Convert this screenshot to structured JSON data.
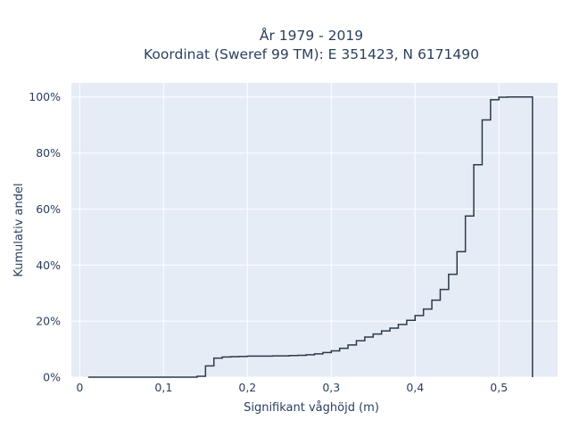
{
  "chart_data": {
    "type": "line",
    "subtype": "ecdf-step",
    "title_lines": [
      "År 1979 - 2019",
      "Koordinat (Sweref 99 TM): E 351423, N 6171490"
    ],
    "xlabel": "Signifikant våghöjd (m)",
    "ylabel": "Kumulativ andel",
    "xlim": [
      -0.01,
      0.57
    ],
    "ylim": [
      0,
      1.05
    ],
    "x_ticks": [
      0,
      0.1,
      0.2,
      0.3,
      0.4,
      0.5
    ],
    "x_tick_labels": [
      "0",
      "0,1",
      "0,2",
      "0,3",
      "0,4",
      "0,5"
    ],
    "y_ticks": [
      0,
      0.2,
      0.4,
      0.6,
      0.8,
      1.0
    ],
    "y_tick_labels": [
      "0%",
      "20%",
      "40%",
      "60%",
      "80%",
      "100%"
    ],
    "grid": true,
    "series": [
      {
        "x": [
          0.01,
          0.14,
          0.15,
          0.16,
          0.17,
          0.18,
          0.19,
          0.2,
          0.21,
          0.22,
          0.23,
          0.24,
          0.25,
          0.26,
          0.27,
          0.28,
          0.29,
          0.3,
          0.31,
          0.32,
          0.33,
          0.34,
          0.35,
          0.36,
          0.37,
          0.38,
          0.39,
          0.4,
          0.41,
          0.42,
          0.43,
          0.44,
          0.45,
          0.46,
          0.47,
          0.48,
          0.49,
          0.5,
          0.51,
          0.54
        ],
        "y": [
          0.0,
          0.003,
          0.04,
          0.068,
          0.072,
          0.073,
          0.074,
          0.075,
          0.075,
          0.075,
          0.076,
          0.076,
          0.077,
          0.078,
          0.08,
          0.083,
          0.088,
          0.094,
          0.103,
          0.115,
          0.13,
          0.143,
          0.154,
          0.165,
          0.175,
          0.188,
          0.203,
          0.22,
          0.243,
          0.275,
          0.313,
          0.367,
          0.448,
          0.575,
          0.758,
          0.918,
          0.99,
          0.999,
          1.0,
          0.0
        ],
        "color": "#2b3a4a"
      }
    ],
    "colors": {
      "plot_bg": "#e5ecf6",
      "grid": "#ffffff",
      "text": "#2a3f5f"
    }
  }
}
